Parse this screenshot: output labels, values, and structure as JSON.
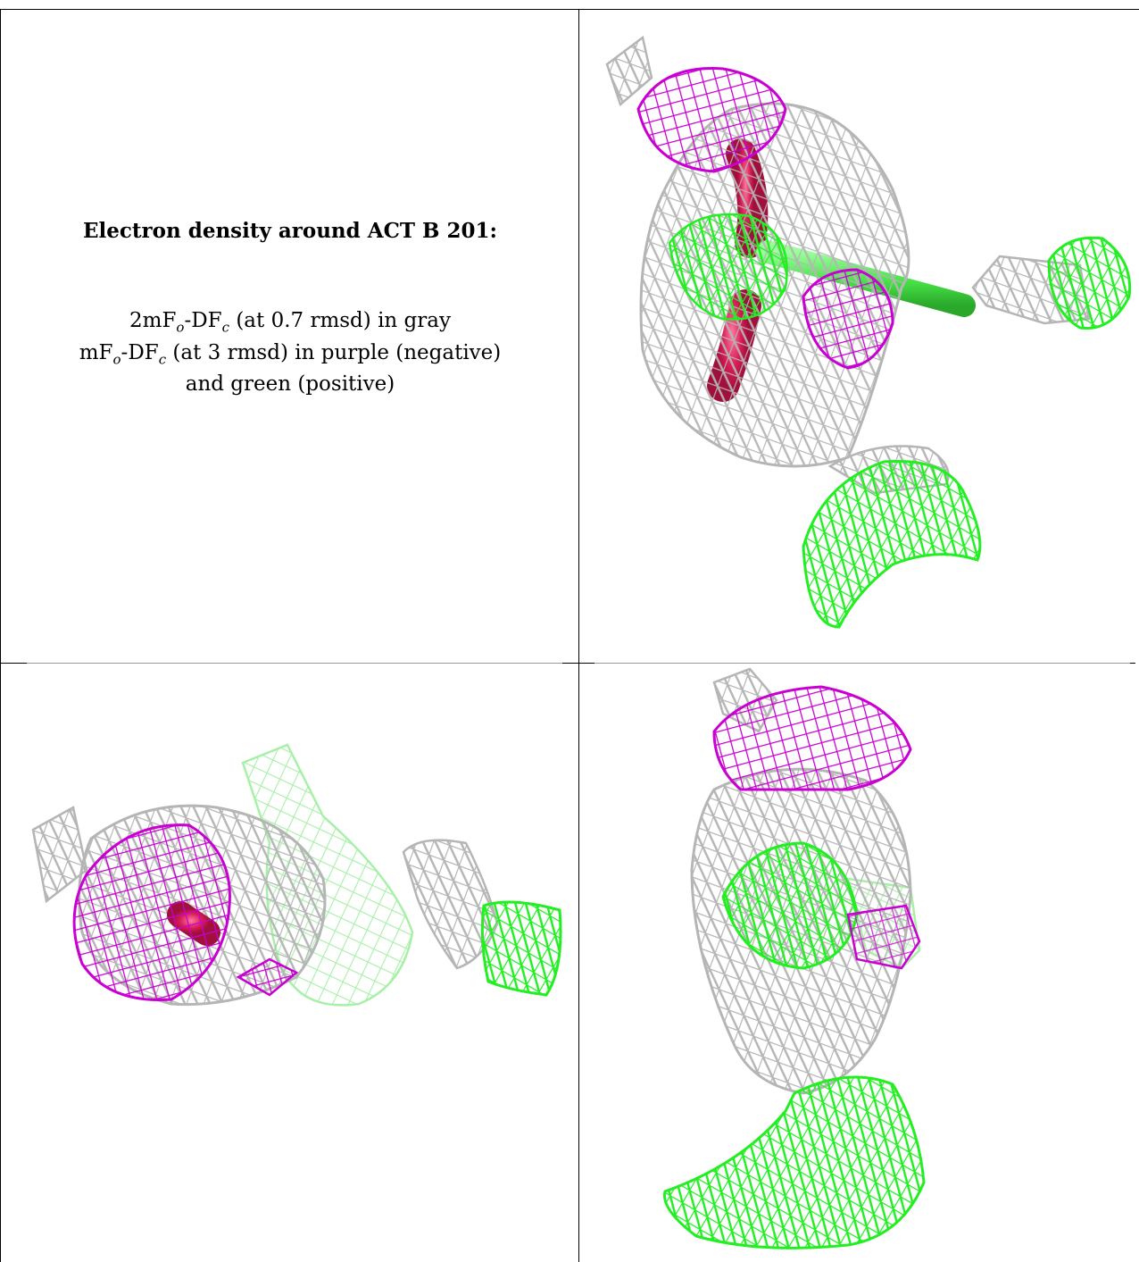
{
  "caption": {
    "title": "Electron density around ACT B 201:",
    "line1_prefix": "2mF",
    "line1_sub1": "o",
    "line1_mid": "-DF",
    "line1_sub2": "c",
    "line1_suffix": " (at 0.7 rmsd) in gray",
    "line2_prefix": "mF",
    "line2_sub1": "o",
    "line2_mid": "-DF",
    "line2_sub2": "c",
    "line2_suffix": " (at 3 rmsd) in purple (negative)",
    "line3": "and green (positive)"
  },
  "colors": {
    "gray_mesh": "#b9b9b9",
    "purple_mesh": "#c800d2",
    "green_mesh": "#22ee22",
    "light_green_mesh": "#9cf29c",
    "ligand_red": "#e0205c",
    "ligand_green": "#4fe84f"
  },
  "panels": [
    "top-right view",
    "bottom-left view",
    "bottom-right view"
  ]
}
